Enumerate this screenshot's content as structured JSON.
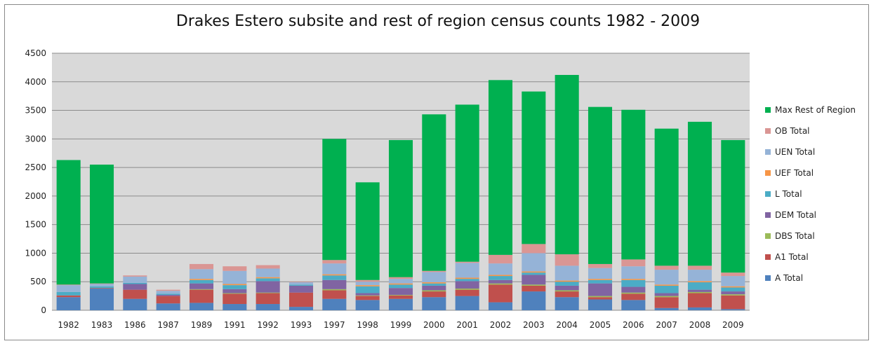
{
  "chart_data": {
    "type": "bar",
    "stacked": true,
    "title": "Drakes Estero subsite and rest of region census counts 1982 - 2009",
    "xlabel": "",
    "ylabel": "",
    "ylim": [
      0,
      4500
    ],
    "yticks": [
      0,
      500,
      1000,
      1500,
      2000,
      2500,
      3000,
      3500,
      4000,
      4500
    ],
    "grid": true,
    "legend_position": "right",
    "categories": [
      "1982",
      "1983",
      "1986",
      "1987",
      "1989",
      "1991",
      "1992",
      "1993",
      "1997",
      "1998",
      "1999",
      "2000",
      "2001",
      "2002",
      "2003",
      "2004",
      "2005",
      "2006",
      "2007",
      "2008",
      "2009"
    ],
    "series": [
      {
        "name": "A Total",
        "color": "#4f81bd",
        "values": [
          230,
          380,
          200,
          120,
          130,
          110,
          110,
          60,
          200,
          180,
          200,
          230,
          250,
          140,
          330,
          230,
          190,
          180,
          40,
          50,
          20
        ]
      },
      {
        "name": "A1 Total",
        "color": "#c0504d",
        "values": [
          30,
          10,
          160,
          130,
          230,
          180,
          190,
          250,
          150,
          70,
          60,
          100,
          110,
          310,
          100,
          100,
          40,
          110,
          190,
          250,
          240
        ]
      },
      {
        "name": "DBS Total",
        "color": "#9bbb59",
        "values": [
          0,
          0,
          0,
          0,
          10,
          10,
          10,
          0,
          20,
          10,
          10,
          20,
          20,
          20,
          20,
          20,
          20,
          20,
          20,
          20,
          20
        ]
      },
      {
        "name": "DEM Total",
        "color": "#8064a2",
        "values": [
          0,
          0,
          100,
          20,
          100,
          70,
          200,
          120,
          160,
          40,
          120,
          80,
          130,
          60,
          170,
          80,
          220,
          100,
          50,
          40,
          50
        ]
      },
      {
        "name": "L Total",
        "color": "#4bacc6",
        "values": [
          60,
          30,
          20,
          20,
          60,
          70,
          50,
          20,
          80,
          120,
          60,
          40,
          40,
          70,
          40,
          70,
          60,
          120,
          130,
          130,
          70
        ]
      },
      {
        "name": "UEF Total",
        "color": "#f79646",
        "values": [
          0,
          0,
          0,
          0,
          20,
          20,
          20,
          0,
          20,
          20,
          20,
          20,
          20,
          20,
          20,
          20,
          20,
          20,
          20,
          20,
          20
        ]
      },
      {
        "name": "UEN Total",
        "color": "#95b3d7",
        "values": [
          120,
          40,
          110,
          50,
          170,
          230,
          150,
          40,
          190,
          60,
          80,
          180,
          260,
          200,
          320,
          260,
          190,
          220,
          260,
          200,
          180
        ]
      },
      {
        "name": "OB Total",
        "color": "#da9694",
        "values": [
          10,
          10,
          20,
          20,
          90,
          80,
          60,
          10,
          60,
          30,
          30,
          20,
          20,
          150,
          160,
          200,
          70,
          120,
          70,
          70,
          60
        ]
      },
      {
        "name": "Max Rest of Region",
        "color": "#00b050",
        "values": [
          2180,
          2080,
          0,
          0,
          0,
          0,
          0,
          0,
          2120,
          1710,
          2400,
          2740,
          2750,
          3060,
          2670,
          3140,
          2750,
          2620,
          2400,
          2520,
          2320
        ]
      }
    ]
  }
}
